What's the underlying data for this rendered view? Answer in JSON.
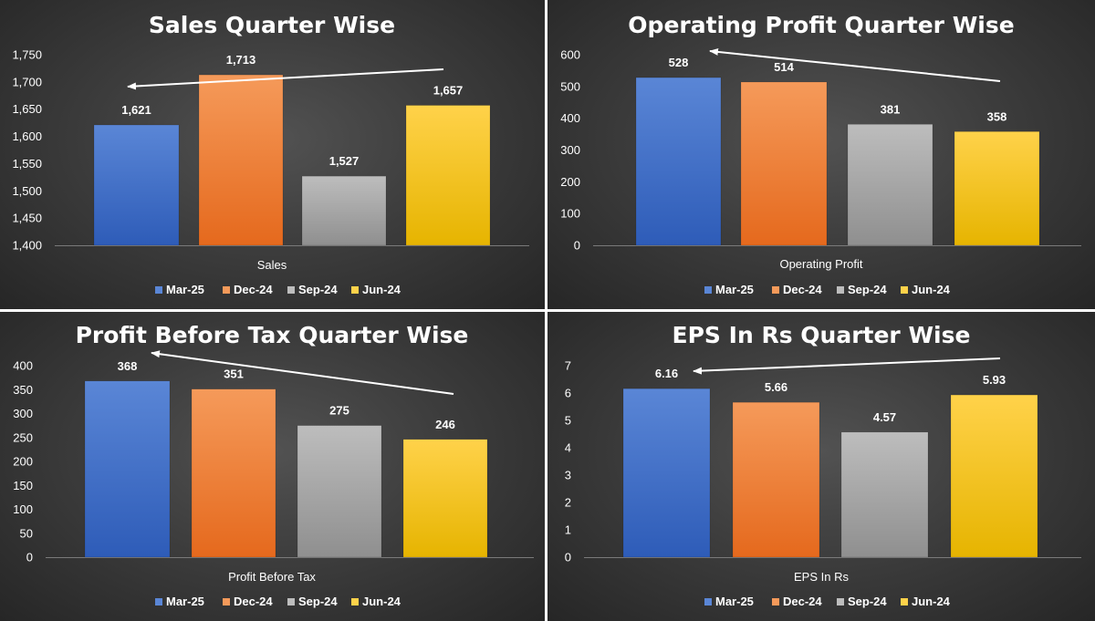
{
  "legend": [
    "Mar-25",
    "Dec-24",
    "Sep-24",
    "Jun-24"
  ],
  "colors": {
    "Mar-25": [
      "#5a86d6",
      "#2e5cb8"
    ],
    "Dec-24": [
      "#f59a5a",
      "#e5691d"
    ],
    "Sep-24": [
      "#bdbdbd",
      "#8f8f8f"
    ],
    "Jun-24": [
      "#ffd24a",
      "#e6b400"
    ],
    "arrow": "#ffffff"
  },
  "chart_data": [
    {
      "type": "bar",
      "title": "Sales Quarter Wise",
      "category": "Sales",
      "series": [
        {
          "name": "Mar-25",
          "value": 1621,
          "label": "1,621"
        },
        {
          "name": "Dec-24",
          "value": 1713,
          "label": "1,713"
        },
        {
          "name": "Sep-24",
          "value": 1527,
          "label": "1,527"
        },
        {
          "name": "Jun-24",
          "value": 1657,
          "label": "1,657"
        }
      ],
      "ylim": [
        1400,
        1750
      ],
      "yticks": [
        1400,
        1450,
        1500,
        1550,
        1600,
        1650,
        1700,
        1750
      ],
      "ytick_labels": [
        "1,400",
        "1,450",
        "1,500",
        "1,550",
        "1,600",
        "1,650",
        "1,700",
        "1,750"
      ],
      "grid": false,
      "legend_position": "bottom"
    },
    {
      "type": "bar",
      "title": "Operating Profit Quarter Wise",
      "category": "Operating Profit",
      "series": [
        {
          "name": "Mar-25",
          "value": 528,
          "label": "528"
        },
        {
          "name": "Dec-24",
          "value": 514,
          "label": "514"
        },
        {
          "name": "Sep-24",
          "value": 381,
          "label": "381"
        },
        {
          "name": "Jun-24",
          "value": 358,
          "label": "358"
        }
      ],
      "ylim": [
        0,
        600
      ],
      "yticks": [
        0,
        100,
        200,
        300,
        400,
        500,
        600
      ],
      "ytick_labels": [
        "0",
        "100",
        "200",
        "300",
        "400",
        "500",
        "600"
      ],
      "grid": false,
      "legend_position": "bottom"
    },
    {
      "type": "bar",
      "title": "Profit Before Tax Quarter Wise",
      "category": "Profit Before Tax",
      "series": [
        {
          "name": "Mar-25",
          "value": 368,
          "label": "368"
        },
        {
          "name": "Dec-24",
          "value": 351,
          "label": "351"
        },
        {
          "name": "Sep-24",
          "value": 275,
          "label": "275"
        },
        {
          "name": "Jun-24",
          "value": 246,
          "label": "246"
        }
      ],
      "ylim": [
        0,
        400
      ],
      "yticks": [
        0,
        50,
        100,
        150,
        200,
        250,
        300,
        350,
        400
      ],
      "ytick_labels": [
        "0",
        "50",
        "100",
        "150",
        "200",
        "250",
        "300",
        "350",
        "400"
      ],
      "grid": false,
      "legend_position": "bottom"
    },
    {
      "type": "bar",
      "title": "EPS In Rs Quarter Wise",
      "category": "EPS In Rs",
      "series": [
        {
          "name": "Mar-25",
          "value": 6.16,
          "label": "6.16"
        },
        {
          "name": "Dec-24",
          "value": 5.66,
          "label": "5.66"
        },
        {
          "name": "Sep-24",
          "value": 4.57,
          "label": "4.57"
        },
        {
          "name": "Jun-24",
          "value": 5.93,
          "label": "5.93"
        }
      ],
      "ylim": [
        0,
        7
      ],
      "yticks": [
        0,
        1,
        2,
        3,
        4,
        5,
        6,
        7
      ],
      "ytick_labels": [
        "0",
        "1",
        "2",
        "3",
        "4",
        "5",
        "6",
        "7"
      ],
      "grid": false,
      "legend_position": "bottom"
    }
  ]
}
